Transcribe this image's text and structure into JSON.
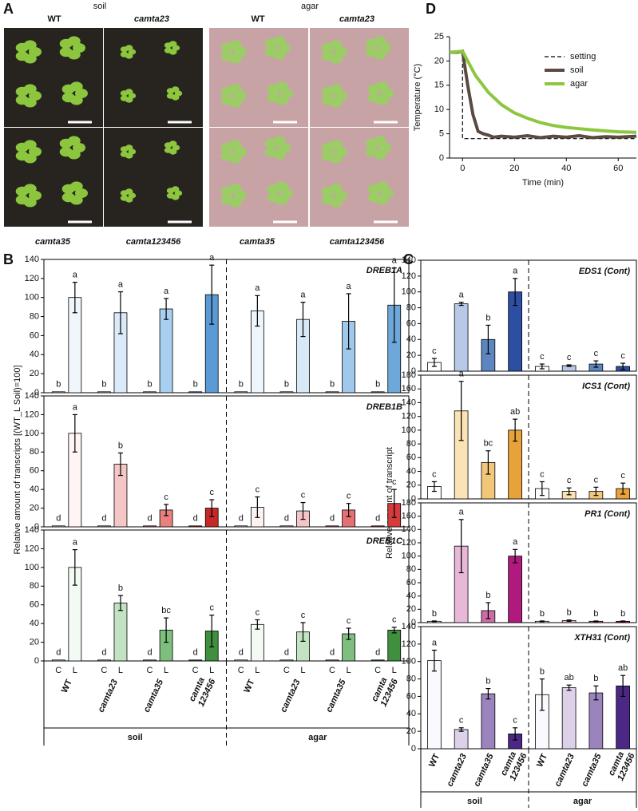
{
  "panel_a": {
    "letter": "A",
    "soil": {
      "title": "soil",
      "top": [
        "WT",
        "camta23"
      ],
      "bottom": [
        "camta35",
        "camta123456"
      ]
    },
    "agar": {
      "title": "agar",
      "top": [
        "WT",
        "camta23"
      ],
      "bottom": [
        "camta35",
        "camta123456"
      ]
    }
  },
  "panel_b": {
    "letter": "B",
    "y_label": "Relative amount of transcripts [(WT_L Soil)=100]",
    "bar_labels": [
      "C",
      "L"
    ],
    "categories": [
      "WT",
      "camta23",
      "camta35",
      "camta 123456",
      "WT",
      "camta23",
      "camta35",
      "camta 123456"
    ],
    "groups": [
      "soil",
      "agar"
    ]
  },
  "panel_c": {
    "letter": "C",
    "y_label": "Relative amount of transcript",
    "categories": [
      "WT",
      "camta23",
      "camta35",
      "camta 123456",
      "WT",
      "camta23",
      "camta35",
      "camta 123456"
    ],
    "groups": [
      "soil",
      "agar"
    ]
  },
  "panel_d": {
    "letter": "D"
  },
  "chart_data": [
    {
      "type": "line",
      "x_label": "Time (min)",
      "y_label": "Temperature (°C)",
      "xlim": [
        -5,
        67
      ],
      "ylim": [
        0,
        25
      ],
      "xticks": [
        0,
        20,
        40,
        60
      ],
      "yticks": [
        0,
        5,
        10,
        15,
        20,
        25
      ],
      "legend": "upper right",
      "series": [
        {
          "name": "setting",
          "color": "#000000",
          "dash": true,
          "x": [
            -5,
            0,
            0,
            67
          ],
          "values": [
            22,
            22,
            4,
            4
          ]
        },
        {
          "name": "soil",
          "color": "#5b4a41",
          "x": [
            -5,
            -2,
            0,
            2,
            4,
            6,
            8,
            10,
            12,
            15,
            20,
            25,
            30,
            35,
            40,
            45,
            50,
            55,
            60,
            67
          ],
          "values": [
            21.8,
            21.8,
            22,
            15,
            9,
            5.5,
            5,
            4.7,
            4.3,
            4.5,
            4.3,
            4.6,
            4.2,
            4.5,
            4.3,
            4.6,
            4.2,
            4.4,
            4.3,
            4.5
          ]
        },
        {
          "name": "agar",
          "color": "#8dc63f",
          "x": [
            -5,
            0,
            5,
            10,
            15,
            20,
            25,
            30,
            35,
            40,
            50,
            60,
            67
          ],
          "values": [
            21.8,
            22,
            17,
            13.5,
            11,
            9.3,
            8.2,
            7.3,
            6.7,
            6.3,
            5.8,
            5.4,
            5.3
          ]
        }
      ]
    },
    {
      "type": "bar",
      "title": "DREB1A",
      "ylim": [
        0,
        140
      ],
      "yticks": [
        0,
        20,
        40,
        60,
        80,
        100,
        120,
        140
      ],
      "colors": [
        "#f0f6fc",
        "#dbeaf8",
        "#a8cff0",
        "#5b9bd5",
        "#eef5fb",
        "#d7e8f6",
        "#9fc8ea",
        "#6ea8db"
      ],
      "series": [
        {
          "values": [
            1,
            1,
            1,
            1,
            1,
            1,
            1,
            1
          ],
          "letters": [
            "b",
            "b",
            "b",
            "b",
            "b",
            "b",
            "b",
            "b"
          ]
        },
        {
          "values": [
            100,
            84,
            88,
            103,
            86,
            77,
            75,
            92
          ],
          "errors": [
            16,
            22,
            11,
            31,
            16,
            18,
            29,
            39
          ],
          "letters": [
            "a",
            "a",
            "a",
            "a",
            "a",
            "a",
            "a",
            "a"
          ]
        }
      ]
    },
    {
      "type": "bar",
      "title": "DREB1B",
      "ylim": [
        0,
        140
      ],
      "yticks": [
        0,
        20,
        40,
        60,
        80,
        100,
        120,
        140
      ],
      "colors": [
        "#fff5f5",
        "#f4c6c6",
        "#e8807e",
        "#c62828",
        "#fdf2f2",
        "#f3c4c8",
        "#e66f73",
        "#d43b3b"
      ],
      "series": [
        {
          "values": [
            1,
            1,
            1,
            1,
            1,
            1,
            1,
            1
          ],
          "letters": [
            "d",
            "d",
            "d",
            "d",
            "d",
            "d",
            "d",
            "d"
          ]
        },
        {
          "values": [
            100,
            67,
            18,
            20,
            21,
            17,
            18,
            25
          ],
          "errors": [
            20,
            12,
            6,
            9,
            11,
            9,
            7,
            15
          ],
          "letters": [
            "a",
            "b",
            "c",
            "c",
            "c",
            "c",
            "c",
            "c"
          ]
        }
      ]
    },
    {
      "type": "bar",
      "title": "DREB1C",
      "ylim": [
        0,
        140
      ],
      "yticks": [
        0,
        20,
        40,
        60,
        80,
        100,
        120,
        140
      ],
      "colors": [
        "#f3faf3",
        "#c2e2c2",
        "#7ebf7e",
        "#3f8f3f",
        "#f3faf3",
        "#c2e2c2",
        "#7ebf7e",
        "#3f8f3f"
      ],
      "series": [
        {
          "values": [
            1,
            1,
            1,
            1,
            1,
            1,
            1,
            1
          ],
          "letters": [
            "d",
            "d",
            "d",
            "d",
            "d",
            "d",
            "d",
            "d"
          ]
        },
        {
          "values": [
            100,
            62,
            33,
            32,
            39,
            31,
            29,
            33
          ],
          "errors": [
            19,
            8,
            13,
            17,
            5,
            10,
            6,
            3
          ],
          "letters": [
            "a",
            "b",
            "bc",
            "c",
            "c",
            "c",
            "c",
            "c"
          ]
        }
      ]
    },
    {
      "type": "bar",
      "title": "EDS1 (Cont)",
      "ylim": [
        0,
        140
      ],
      "yticks": [
        0,
        20,
        40,
        60,
        80,
        100,
        120,
        140
      ],
      "colors": [
        "#ffffff",
        "#b7c9e6",
        "#5d86c0",
        "#2d4fa3",
        "#ffffff",
        "#b7c9e6",
        "#5d86c0",
        "#2d4fa3"
      ],
      "series": [
        {
          "values": [
            11,
            85,
            40,
            100,
            6,
            7,
            9,
            6
          ],
          "errors": [
            5,
            2,
            18,
            17,
            3,
            1,
            4,
            4
          ],
          "letters": [
            "c",
            "a",
            "b",
            "a",
            "c",
            "c",
            "c",
            "c"
          ]
        }
      ]
    },
    {
      "type": "bar",
      "title": "ICS1 (Cont)",
      "ylim": [
        0,
        180
      ],
      "yticks": [
        0,
        20,
        40,
        60,
        80,
        100,
        120,
        140,
        160,
        180
      ],
      "colors": [
        "#ffffff",
        "#fbe3b5",
        "#f3c77a",
        "#e8a23a",
        "#ffffff",
        "#fbe3b5",
        "#f3c77a",
        "#e8a23a"
      ],
      "series": [
        {
          "values": [
            18,
            128,
            53,
            100,
            15,
            11,
            11,
            15
          ],
          "errors": [
            7,
            43,
            17,
            16,
            10,
            5,
            6,
            8
          ],
          "letters": [
            "c",
            "a",
            "bc",
            "ab",
            "c",
            "c",
            "c",
            "c"
          ]
        }
      ]
    },
    {
      "type": "bar",
      "title": "PR1 (Cont)",
      "ylim": [
        0,
        180
      ],
      "yticks": [
        0,
        20,
        40,
        60,
        80,
        100,
        120,
        140,
        160,
        180
      ],
      "colors": [
        "#ffffff",
        "#e8b8d8",
        "#cc6da8",
        "#b01a7e",
        "#ffffff",
        "#e8b8d8",
        "#cc6da8",
        "#b01a7e"
      ],
      "series": [
        {
          "values": [
            2,
            115,
            18,
            100,
            2,
            3,
            2,
            2
          ],
          "errors": [
            0.5,
            40,
            12,
            10,
            0.5,
            1,
            0.5,
            0.5
          ],
          "letters": [
            "b",
            "a",
            "b",
            "a",
            "b",
            "b",
            "b",
            "b"
          ]
        }
      ]
    },
    {
      "type": "bar",
      "title": "XTH31 (Cont)",
      "ylim": [
        0,
        140
      ],
      "yticks": [
        0,
        20,
        40,
        60,
        80,
        100,
        120,
        140
      ],
      "colors": [
        "#fbf9fd",
        "#dcd1e8",
        "#9b84bd",
        "#4b2885",
        "#fbf9fd",
        "#dcd1e8",
        "#9b84bd",
        "#4b2885"
      ],
      "series": [
        {
          "values": [
            101,
            22,
            63,
            17,
            62,
            70,
            64,
            72
          ],
          "errors": [
            12,
            2,
            6,
            7,
            18,
            3,
            8,
            12
          ],
          "letters": [
            "a",
            "c",
            "b",
            "c",
            "b",
            "ab",
            "b",
            "ab"
          ]
        }
      ]
    }
  ]
}
